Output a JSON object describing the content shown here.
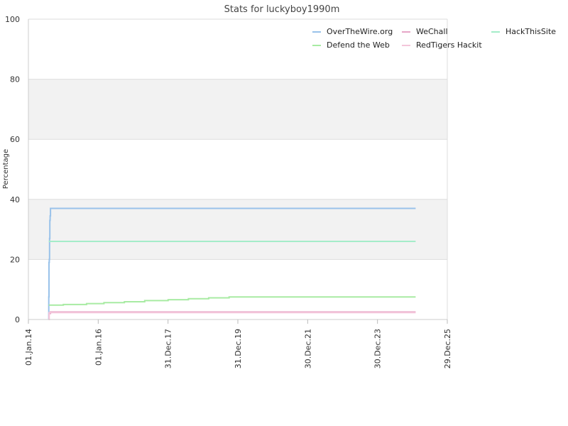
{
  "chart_data": {
    "type": "line",
    "title": "Stats for luckyboy1990m",
    "ylabel": "Percentage",
    "xlabel": "",
    "ylim": [
      0,
      100
    ],
    "y_ticks": [
      "0",
      "20",
      "40",
      "60",
      "80",
      "100"
    ],
    "x_range": [
      "2014-01-01",
      "2025-12-29"
    ],
    "x_ticks": [
      {
        "label": "01.Jan.14",
        "date": "2014-01-01"
      },
      {
        "label": "01.Jan.16",
        "date": "2016-01-01"
      },
      {
        "label": "31.Dec.17",
        "date": "2017-12-31"
      },
      {
        "label": "31.Dec.19",
        "date": "2019-12-31"
      },
      {
        "label": "30.Dec.21",
        "date": "2021-12-30"
      },
      {
        "label": "30.Dec.23",
        "date": "2023-12-30"
      },
      {
        "label": "29.Dec.25",
        "date": "2025-12-29"
      }
    ],
    "grid": true,
    "alternating_bands": true,
    "legend_position": "top-right",
    "series": [
      {
        "name": "OverTheWire.org",
        "color": "#99c2ea",
        "points": [
          [
            "2014-08-01",
            0
          ],
          [
            "2014-08-02",
            7.5
          ],
          [
            "2014-08-04",
            19
          ],
          [
            "2014-08-07",
            20
          ],
          [
            "2014-08-10",
            27
          ],
          [
            "2014-08-13",
            33
          ],
          [
            "2014-08-16",
            34.5
          ],
          [
            "2014-08-20",
            37
          ],
          [
            "2025-02-01",
            37
          ]
        ]
      },
      {
        "name": "WeChall",
        "color": "#e6a6c7",
        "points": [
          [
            "2014-08-01",
            0
          ],
          [
            "2014-08-05",
            2
          ],
          [
            "2014-08-20",
            2.5
          ],
          [
            "2025-02-01",
            2.5
          ]
        ]
      },
      {
        "name": "HackThisSite",
        "color": "#a4ecc9",
        "points": [
          [
            "2014-08-02",
            26
          ],
          [
            "2025-02-01",
            26
          ]
        ]
      },
      {
        "name": "Defend the Web",
        "color": "#a8eba3",
        "points": [
          [
            "2014-08-03",
            4.8
          ],
          [
            "2015-01-01",
            5.0
          ],
          [
            "2015-09-01",
            5.3
          ],
          [
            "2016-03-01",
            5.6
          ],
          [
            "2016-10-01",
            5.9
          ],
          [
            "2017-05-01",
            6.3
          ],
          [
            "2018-01-01",
            6.6
          ],
          [
            "2018-08-01",
            6.9
          ],
          [
            "2019-03-01",
            7.2
          ],
          [
            "2019-10-01",
            7.5
          ],
          [
            "2025-02-01",
            7.5
          ]
        ]
      },
      {
        "name": "RedTigers Hackit",
        "color": "#f4c6da",
        "points": [
          [
            "2014-08-01",
            0
          ],
          [
            "2014-08-06",
            2.3
          ],
          [
            "2025-02-01",
            2.3
          ]
        ]
      }
    ]
  }
}
